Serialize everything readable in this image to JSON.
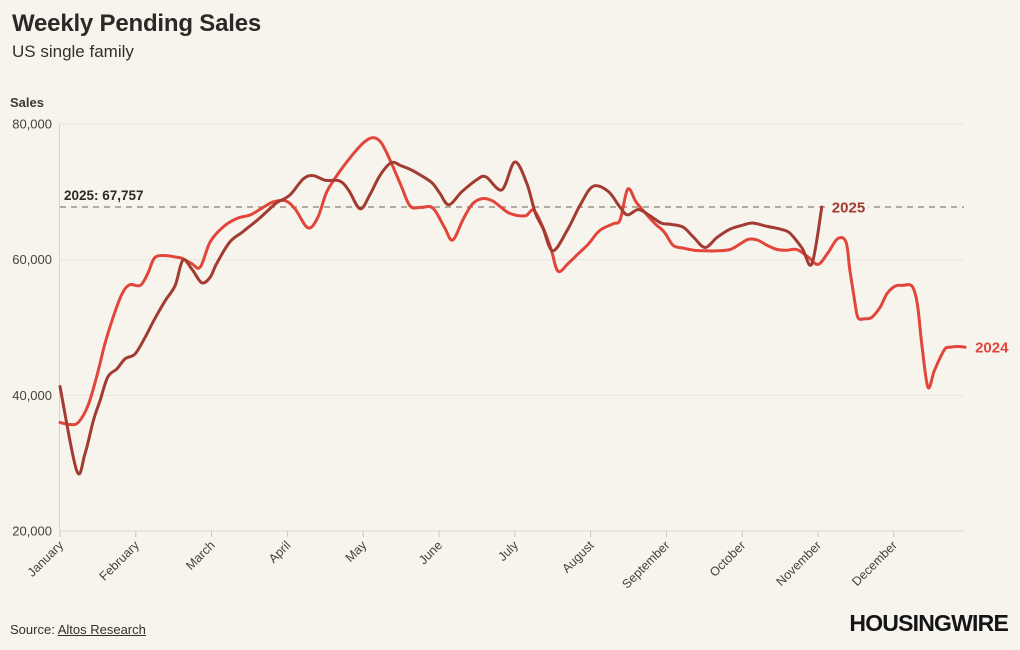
{
  "header": {
    "title": "Weekly Pending Sales",
    "subtitle": "US single family"
  },
  "chart_data": {
    "type": "line",
    "title": "Weekly Pending Sales",
    "subtitle": "US single family",
    "ylabel": "Sales",
    "grid": true,
    "legend_position": "end-of-line-labels",
    "y_axis": {
      "min": 20000,
      "max": 80000,
      "ticks": [
        {
          "value": 80000,
          "label": "80,000"
        },
        {
          "value": 60000,
          "label": "60,000"
        },
        {
          "value": 40000,
          "label": "40,000"
        },
        {
          "value": 20000,
          "label": "20,000"
        }
      ]
    },
    "x_axis": {
      "months": [
        "January",
        "February",
        "March",
        "April",
        "May",
        "June",
        "July",
        "August",
        "September",
        "October",
        "November",
        "December"
      ]
    },
    "annotation": {
      "label": "2025: 67,757",
      "value": 67757,
      "line_style": "dashed",
      "line_color": "#97948c"
    },
    "series": [
      {
        "name": "2024",
        "color": "#e2453a",
        "points": [
          [
            0,
            36000
          ],
          [
            0.13,
            35700
          ],
          [
            0.24,
            36000
          ],
          [
            0.37,
            38500
          ],
          [
            0.49,
            43000
          ],
          [
            0.59,
            47500
          ],
          [
            0.7,
            51500
          ],
          [
            0.82,
            55000
          ],
          [
            0.92,
            56300
          ],
          [
            1.06,
            56200
          ],
          [
            1.16,
            58000
          ],
          [
            1.25,
            60300
          ],
          [
            1.39,
            60600
          ],
          [
            1.52,
            60400
          ],
          [
            1.61,
            60200
          ],
          [
            1.74,
            59400
          ],
          [
            1.85,
            58900
          ],
          [
            1.98,
            62600
          ],
          [
            2.15,
            64800
          ],
          [
            2.34,
            66100
          ],
          [
            2.51,
            66600
          ],
          [
            2.68,
            67700
          ],
          [
            2.81,
            68500
          ],
          [
            2.97,
            68700
          ],
          [
            3.1,
            67500
          ],
          [
            3.27,
            64700
          ],
          [
            3.4,
            66200
          ],
          [
            3.52,
            70000
          ],
          [
            3.69,
            73000
          ],
          [
            3.87,
            75600
          ],
          [
            4.01,
            77300
          ],
          [
            4.13,
            78000
          ],
          [
            4.24,
            77200
          ],
          [
            4.37,
            74300
          ],
          [
            4.5,
            70900
          ],
          [
            4.62,
            67900
          ],
          [
            4.76,
            67700
          ],
          [
            4.92,
            67600
          ],
          [
            5.07,
            64800
          ],
          [
            5.18,
            62900
          ],
          [
            5.32,
            66000
          ],
          [
            5.44,
            68200
          ],
          [
            5.57,
            69000
          ],
          [
            5.7,
            68700
          ],
          [
            5.82,
            67700
          ],
          [
            5.92,
            66900
          ],
          [
            6.04,
            66500
          ],
          [
            6.15,
            66500
          ],
          [
            6.25,
            67300
          ],
          [
            6.37,
            64800
          ],
          [
            6.48,
            61500
          ],
          [
            6.57,
            58300
          ],
          [
            6.7,
            59400
          ],
          [
            6.83,
            60800
          ],
          [
            6.97,
            62300
          ],
          [
            7.12,
            64300
          ],
          [
            7.3,
            65300
          ],
          [
            7.39,
            65900
          ],
          [
            7.49,
            70400
          ],
          [
            7.6,
            68500
          ],
          [
            7.72,
            66900
          ],
          [
            7.85,
            65300
          ],
          [
            7.97,
            64100
          ],
          [
            8.09,
            62100
          ],
          [
            8.22,
            61700
          ],
          [
            8.36,
            61400
          ],
          [
            8.51,
            61300
          ],
          [
            8.68,
            61300
          ],
          [
            8.84,
            61500
          ],
          [
            8.97,
            62300
          ],
          [
            9.08,
            63000
          ],
          [
            9.2,
            62900
          ],
          [
            9.33,
            62100
          ],
          [
            9.46,
            61500
          ],
          [
            9.59,
            61400
          ],
          [
            9.72,
            61500
          ],
          [
            9.87,
            60400
          ],
          [
            10.0,
            59300
          ],
          [
            10.13,
            61000
          ],
          [
            10.26,
            63100
          ],
          [
            10.37,
            62600
          ],
          [
            10.42,
            58500
          ],
          [
            10.49,
            53500
          ],
          [
            10.53,
            51400
          ],
          [
            10.62,
            51300
          ],
          [
            10.71,
            51500
          ],
          [
            10.82,
            53000
          ],
          [
            10.91,
            55000
          ],
          [
            11.02,
            56100
          ],
          [
            11.12,
            56200
          ],
          [
            11.24,
            56100
          ],
          [
            11.31,
            53500
          ],
          [
            11.37,
            47500
          ],
          [
            11.45,
            41200
          ],
          [
            11.53,
            43500
          ],
          [
            11.61,
            45500
          ],
          [
            11.68,
            46900
          ],
          [
            11.75,
            47100
          ],
          [
            11.85,
            47200
          ],
          [
            11.94,
            47100
          ]
        ]
      },
      {
        "name": "2025",
        "color": "#a23b31",
        "points": [
          [
            0,
            41300
          ],
          [
            0.22,
            28900
          ],
          [
            0.33,
            31400
          ],
          [
            0.44,
            36300
          ],
          [
            0.53,
            39300
          ],
          [
            0.63,
            42700
          ],
          [
            0.75,
            43900
          ],
          [
            0.86,
            45400
          ],
          [
            0.99,
            46100
          ],
          [
            1.12,
            48500
          ],
          [
            1.25,
            51300
          ],
          [
            1.39,
            54000
          ],
          [
            1.52,
            56200
          ],
          [
            1.62,
            59900
          ],
          [
            1.74,
            58600
          ],
          [
            1.87,
            56600
          ],
          [
            1.98,
            57400
          ],
          [
            2.07,
            59500
          ],
          [
            2.24,
            62600
          ],
          [
            2.41,
            64100
          ],
          [
            2.6,
            65800
          ],
          [
            2.73,
            67100
          ],
          [
            2.86,
            68400
          ],
          [
            3.03,
            69500
          ],
          [
            3.21,
            71900
          ],
          [
            3.34,
            72400
          ],
          [
            3.5,
            71700
          ],
          [
            3.69,
            71600
          ],
          [
            3.81,
            70200
          ],
          [
            3.96,
            67500
          ],
          [
            4.09,
            69600
          ],
          [
            4.22,
            72400
          ],
          [
            4.37,
            74300
          ],
          [
            4.49,
            73900
          ],
          [
            4.62,
            73300
          ],
          [
            4.75,
            72500
          ],
          [
            4.91,
            71300
          ],
          [
            5.01,
            69800
          ],
          [
            5.13,
            68100
          ],
          [
            5.3,
            70000
          ],
          [
            5.5,
            71800
          ],
          [
            5.62,
            72200
          ],
          [
            5.83,
            70300
          ],
          [
            6.0,
            74400
          ],
          [
            6.16,
            71200
          ],
          [
            6.27,
            66900
          ],
          [
            6.37,
            64700
          ],
          [
            6.5,
            61300
          ],
          [
            6.69,
            64300
          ],
          [
            6.86,
            68000
          ],
          [
            7.03,
            70800
          ],
          [
            7.23,
            70100
          ],
          [
            7.39,
            67700
          ],
          [
            7.49,
            66600
          ],
          [
            7.63,
            67400
          ],
          [
            7.78,
            66500
          ],
          [
            7.93,
            65400
          ],
          [
            8.06,
            65200
          ],
          [
            8.22,
            64800
          ],
          [
            8.36,
            63300
          ],
          [
            8.51,
            61800
          ],
          [
            8.67,
            63300
          ],
          [
            8.84,
            64500
          ],
          [
            9.01,
            65100
          ],
          [
            9.14,
            65400
          ],
          [
            9.33,
            64900
          ],
          [
            9.5,
            64500
          ],
          [
            9.63,
            63900
          ],
          [
            9.79,
            61700
          ],
          [
            9.92,
            59400
          ],
          [
            10.05,
            67757
          ]
        ]
      }
    ]
  },
  "footer": {
    "source_prefix": "Source: ",
    "source_link": "Altos Research",
    "logo": "HOUSINGWIRE"
  }
}
